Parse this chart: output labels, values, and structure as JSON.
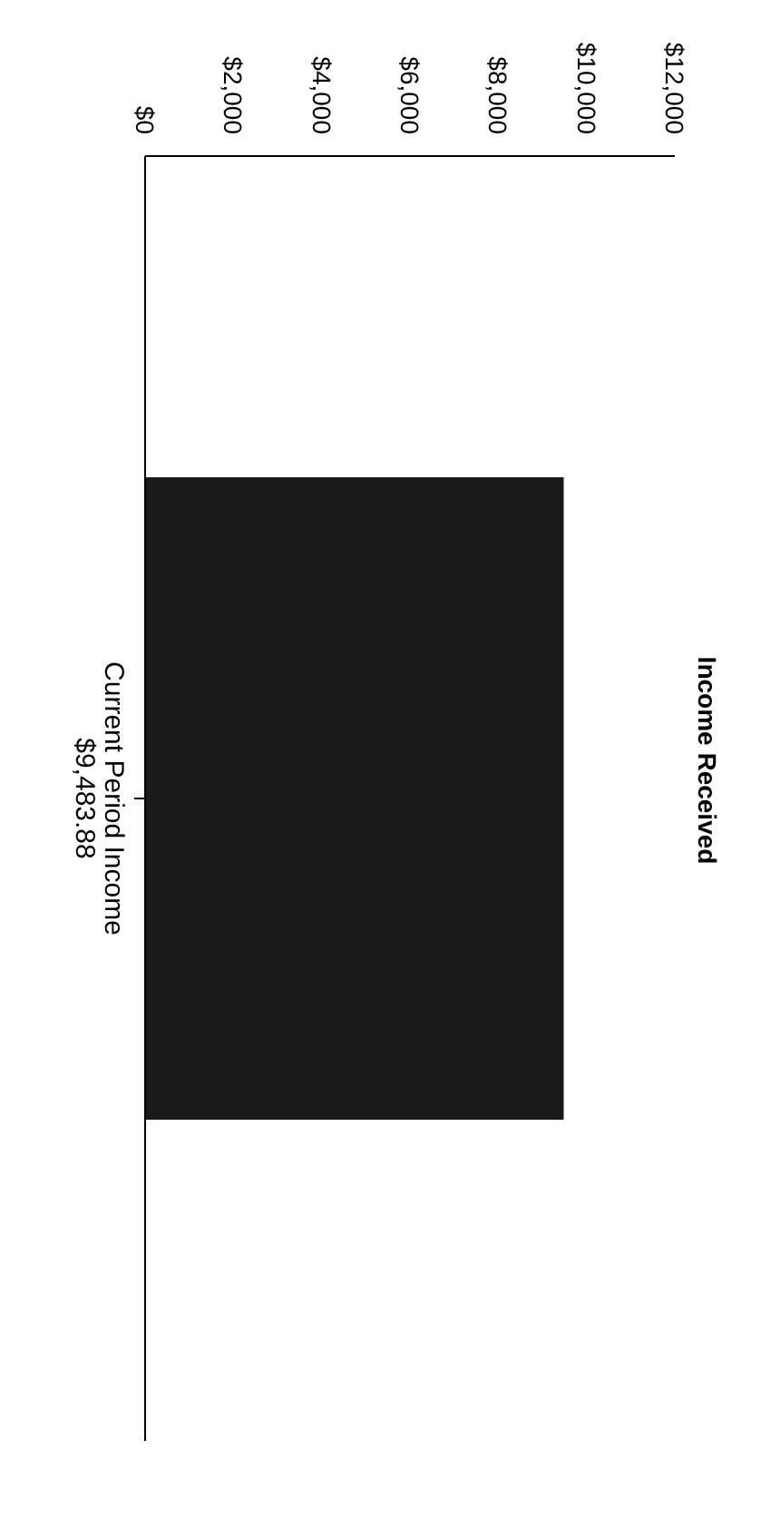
{
  "chart_data": {
    "type": "bar",
    "orientation": "horizontal",
    "title": "Income Received",
    "categories": [
      "Current Period Income"
    ],
    "values": [
      9483.88
    ],
    "value_labels": [
      "$9,483.88"
    ],
    "color": "#1a1a1a",
    "xlim": [
      0,
      12000
    ],
    "xticks": [
      {
        "value": 0,
        "label": "$0"
      },
      {
        "value": 2000,
        "label": "$2,000"
      },
      {
        "value": 4000,
        "label": "$4,000"
      },
      {
        "value": 6000,
        "label": "$6,000"
      },
      {
        "value": 8000,
        "label": "$8,000"
      },
      {
        "value": 10000,
        "label": "$10,000"
      },
      {
        "value": 12000,
        "label": "$12,000"
      }
    ],
    "grid": false,
    "legend": false
  }
}
